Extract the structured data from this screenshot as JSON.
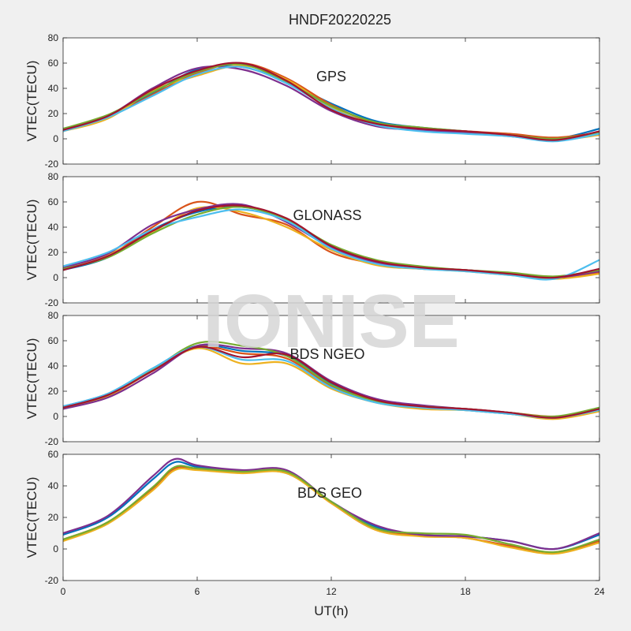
{
  "figure": {
    "title": "HNDF20220225",
    "xlabel": "UT(h)",
    "watermark": "IONISE"
  },
  "colors": [
    "#0072BD",
    "#D95319",
    "#EDB120",
    "#7E2F8E",
    "#77AC30",
    "#4DBEEE",
    "#A2142F"
  ],
  "chart_data": [
    {
      "type": "line",
      "panel_label": "GPS",
      "ylabel": "VTEC(TECU)",
      "xlim": [
        0,
        24
      ],
      "ylim": [
        -20,
        80
      ],
      "xticks": [
        0,
        6,
        12,
        18,
        24
      ],
      "yticks": [
        -20,
        0,
        20,
        40,
        60,
        80
      ],
      "series": [
        {
          "x": [
            0,
            2,
            4,
            6,
            8,
            10,
            12,
            14,
            16,
            18,
            20,
            22,
            24
          ],
          "values": [
            8,
            18,
            36,
            55,
            57,
            45,
            28,
            14,
            9,
            6,
            3,
            0,
            8
          ]
        },
        {
          "x": [
            0,
            2,
            4,
            6,
            8,
            10,
            12,
            14,
            16,
            18,
            20,
            22,
            24
          ],
          "values": [
            7,
            17,
            35,
            52,
            60,
            48,
            27,
            12,
            8,
            6,
            4,
            1,
            5
          ]
        },
        {
          "x": [
            0,
            2,
            4,
            6,
            8,
            10,
            12,
            14,
            16,
            18,
            20,
            22,
            24
          ],
          "values": [
            6,
            16,
            38,
            50,
            58,
            47,
            25,
            11,
            7,
            5,
            3,
            -1,
            3
          ]
        },
        {
          "x": [
            0,
            2,
            4,
            6,
            8,
            10,
            12,
            14,
            16,
            18,
            20,
            22,
            24
          ],
          "values": [
            7,
            18,
            40,
            56,
            55,
            42,
            22,
            10,
            7,
            5,
            2,
            -1,
            4
          ]
        },
        {
          "x": [
            0,
            2,
            4,
            6,
            8,
            10,
            12,
            14,
            16,
            18,
            20,
            22,
            24
          ],
          "values": [
            8,
            19,
            37,
            53,
            59,
            45,
            26,
            13,
            9,
            6,
            3,
            0,
            5
          ]
        },
        {
          "x": [
            0,
            2,
            4,
            6,
            8,
            10,
            12,
            14,
            16,
            18,
            20,
            22,
            24
          ],
          "values": [
            6,
            17,
            34,
            51,
            57,
            44,
            24,
            11,
            6,
            4,
            2,
            -2,
            4
          ]
        },
        {
          "x": [
            0,
            2,
            4,
            6,
            8,
            10,
            12,
            14,
            16,
            18,
            20,
            22,
            24
          ],
          "values": [
            7,
            18,
            39,
            54,
            60,
            46,
            23,
            12,
            8,
            6,
            3,
            -1,
            6
          ]
        }
      ]
    },
    {
      "type": "line",
      "panel_label": "GLONASS",
      "ylabel": "VTEC(TECU)",
      "xlim": [
        0,
        24
      ],
      "ylim": [
        -20,
        80
      ],
      "xticks": [
        0,
        6,
        12,
        18,
        24
      ],
      "yticks": [
        -20,
        0,
        20,
        40,
        60,
        80
      ],
      "series": [
        {
          "x": [
            0,
            2,
            4,
            6,
            8,
            10,
            12,
            14,
            16,
            18,
            20,
            22,
            24
          ],
          "values": [
            6,
            16,
            38,
            52,
            56,
            46,
            24,
            12,
            8,
            6,
            3,
            0,
            6
          ]
        },
        {
          "x": [
            0,
            2,
            4,
            6,
            8,
            10,
            12,
            14,
            16,
            18,
            20,
            22,
            24
          ],
          "values": [
            7,
            17,
            40,
            60,
            50,
            42,
            20,
            11,
            7,
            6,
            3,
            0,
            4
          ]
        },
        {
          "x": [
            0,
            2,
            4,
            6,
            8,
            10,
            12,
            14,
            16,
            18,
            20,
            22,
            24
          ],
          "values": [
            6,
            18,
            36,
            55,
            52,
            40,
            22,
            10,
            7,
            5,
            2,
            -1,
            3
          ]
        },
        {
          "x": [
            0,
            2,
            4,
            6,
            8,
            10,
            12,
            14,
            16,
            18,
            20,
            22,
            24
          ],
          "values": [
            8,
            19,
            42,
            54,
            58,
            44,
            24,
            12,
            8,
            6,
            3,
            0,
            5
          ]
        },
        {
          "x": [
            0,
            2,
            4,
            6,
            8,
            10,
            12,
            14,
            16,
            18,
            20,
            22,
            24
          ],
          "values": [
            7,
            16,
            35,
            50,
            56,
            46,
            26,
            14,
            9,
            6,
            4,
            1,
            6
          ]
        },
        {
          "x": [
            0,
            2,
            4,
            6,
            8,
            10,
            12,
            14,
            16,
            18,
            20,
            22,
            24
          ],
          "values": [
            9,
            20,
            38,
            48,
            54,
            45,
            23,
            11,
            7,
            5,
            2,
            -1,
            14
          ]
        },
        {
          "x": [
            0,
            2,
            4,
            6,
            8,
            10,
            12,
            14,
            16,
            18,
            20,
            22,
            24
          ],
          "values": [
            6,
            17,
            37,
            53,
            57,
            47,
            25,
            13,
            8,
            6,
            3,
            0,
            7
          ]
        }
      ]
    },
    {
      "type": "line",
      "panel_label": "BDS NGEO",
      "ylabel": "VTEC(TECU)",
      "xlim": [
        0,
        24
      ],
      "ylim": [
        -20,
        80
      ],
      "xticks": [
        0,
        6,
        12,
        18,
        24
      ],
      "yticks": [
        -20,
        0,
        20,
        40,
        60,
        80
      ],
      "series": [
        {
          "x": [
            0,
            2,
            4,
            6,
            8,
            10,
            12,
            14,
            16,
            18,
            20,
            22,
            24
          ],
          "values": [
            8,
            18,
            38,
            56,
            52,
            48,
            26,
            12,
            7,
            5,
            2,
            -1,
            7
          ]
        },
        {
          "x": [
            0,
            2,
            4,
            6,
            8,
            10,
            12,
            14,
            16,
            18,
            20,
            22,
            24
          ],
          "values": [
            7,
            17,
            37,
            55,
            50,
            46,
            24,
            13,
            8,
            6,
            3,
            0,
            5
          ]
        },
        {
          "x": [
            0,
            2,
            4,
            6,
            8,
            10,
            12,
            14,
            16,
            18,
            20,
            22,
            24
          ],
          "values": [
            6,
            16,
            36,
            54,
            42,
            42,
            22,
            11,
            6,
            5,
            2,
            -2,
            4
          ]
        },
        {
          "x": [
            0,
            2,
            4,
            6,
            8,
            10,
            12,
            14,
            16,
            18,
            20,
            22,
            24
          ],
          "values": [
            6,
            15,
            34,
            56,
            54,
            50,
            28,
            14,
            9,
            6,
            3,
            -1,
            6
          ]
        },
        {
          "x": [
            0,
            2,
            4,
            6,
            8,
            10,
            12,
            14,
            16,
            18,
            20,
            22,
            24
          ],
          "values": [
            7,
            17,
            37,
            58,
            56,
            48,
            25,
            12,
            8,
            6,
            3,
            0,
            7
          ]
        },
        {
          "x": [
            0,
            2,
            4,
            6,
            8,
            10,
            12,
            14,
            16,
            18,
            20,
            22,
            24
          ],
          "values": [
            8,
            18,
            38,
            55,
            45,
            44,
            23,
            11,
            7,
            5,
            2,
            -1,
            5
          ]
        },
        {
          "x": [
            0,
            2,
            4,
            6,
            8,
            10,
            12,
            14,
            16,
            18,
            20,
            22,
            24
          ],
          "values": [
            7,
            17,
            36,
            55,
            47,
            49,
            27,
            13,
            8,
            6,
            3,
            -1,
            6
          ]
        }
      ]
    },
    {
      "type": "line",
      "panel_label": "BDS GEO",
      "ylabel": "VTEC(TECU)",
      "xlim": [
        0,
        24
      ],
      "ylim": [
        -20,
        60
      ],
      "xticks": [
        0,
        6,
        12,
        18,
        24
      ],
      "yticks": [
        -20,
        0,
        20,
        40,
        60
      ],
      "series": [
        {
          "x": [
            0,
            2,
            4,
            5,
            6,
            8,
            10,
            12,
            14,
            16,
            18,
            20,
            22,
            24
          ],
          "values": [
            9,
            20,
            44,
            55,
            52,
            49,
            48,
            30,
            14,
            9,
            8,
            5,
            0,
            9
          ]
        },
        {
          "x": [
            0,
            2,
            4,
            5,
            6,
            8,
            10,
            12,
            14,
            16,
            18,
            20,
            22,
            24
          ],
          "values": [
            6,
            17,
            38,
            51,
            51,
            49,
            49,
            29,
            12,
            9,
            7,
            2,
            -2,
            5
          ]
        },
        {
          "x": [
            0,
            2,
            4,
            5,
            6,
            8,
            10,
            12,
            14,
            16,
            18,
            20,
            22,
            24
          ],
          "values": [
            5,
            16,
            37,
            50,
            50,
            48,
            48,
            29,
            12,
            8,
            7,
            1,
            -3,
            4
          ]
        },
        {
          "x": [
            0,
            2,
            4,
            5,
            6,
            8,
            10,
            12,
            14,
            16,
            18,
            20,
            22,
            24
          ],
          "values": [
            10,
            21,
            46,
            57,
            53,
            50,
            50,
            30,
            15,
            9,
            8,
            5,
            0,
            10
          ]
        },
        {
          "x": [
            0,
            2,
            4,
            5,
            6,
            8,
            10,
            12,
            14,
            16,
            18,
            20,
            22,
            24
          ],
          "values": [
            6,
            17,
            39,
            52,
            51,
            49,
            49,
            30,
            13,
            10,
            9,
            3,
            -2,
            6
          ]
        }
      ]
    }
  ]
}
